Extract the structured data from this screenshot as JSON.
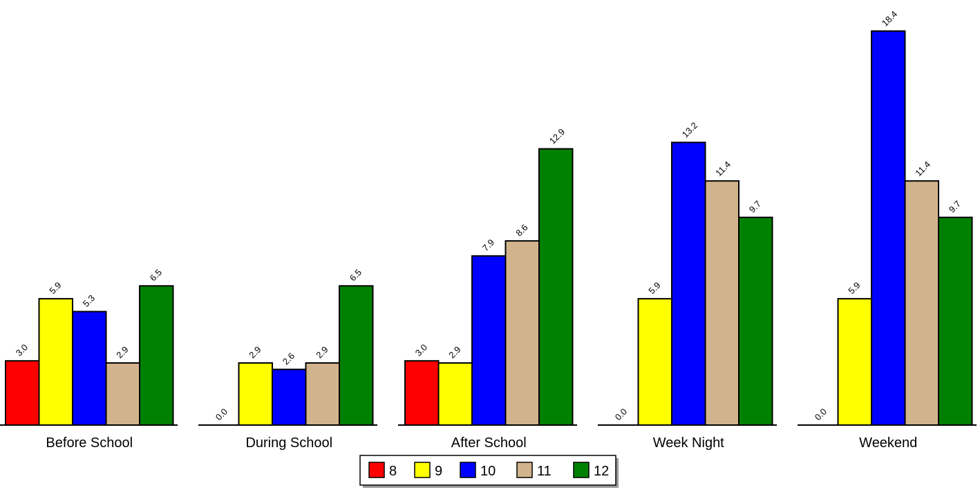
{
  "chart_data": {
    "type": "bar",
    "title": "",
    "xlabel": "",
    "ylabel": "",
    "categories": [
      "Before School",
      "During School",
      "After School",
      "Week Night",
      "Weekend"
    ],
    "series": [
      {
        "name": "8",
        "color": "#ff0000",
        "values": [
          3.0,
          0.0,
          3.0,
          0.0,
          0.0
        ]
      },
      {
        "name": "9",
        "color": "#ffff00",
        "values": [
          5.9,
          2.9,
          2.9,
          5.9,
          5.9
        ]
      },
      {
        "name": "10",
        "color": "#0000ff",
        "values": [
          5.3,
          2.6,
          7.9,
          13.2,
          18.4
        ]
      },
      {
        "name": "11",
        "color": "#d2b48c",
        "values": [
          2.9,
          2.9,
          8.6,
          11.4,
          11.4
        ]
      },
      {
        "name": "12",
        "color": "#008000",
        "values": [
          6.5,
          6.5,
          12.9,
          9.7,
          9.7
        ]
      }
    ],
    "value_labels": [
      [
        "3.0",
        "0.0",
        "3.0",
        "0.0",
        "0.0"
      ],
      [
        "5.9",
        "2.9",
        "2.9",
        "5.9",
        "5.9"
      ],
      [
        "5.3",
        "2.6",
        "7.9",
        "13.2",
        "18.4"
      ],
      [
        "2.9",
        "2.9",
        "8.6",
        "11.4",
        "11.4"
      ],
      [
        "6.5",
        "6.5",
        "12.9",
        "9.7",
        "9.7"
      ]
    ],
    "ylim": [
      0,
      18.4
    ],
    "grid": false,
    "legend_position": "bottom-center"
  }
}
